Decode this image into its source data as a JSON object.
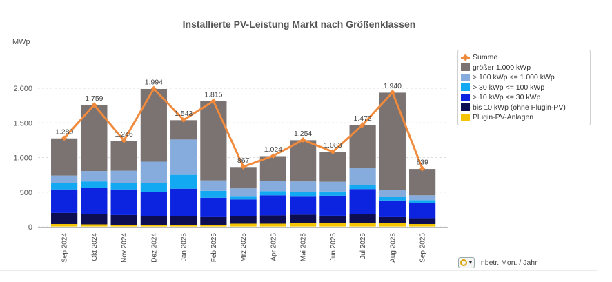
{
  "chart_data": {
    "type": "bar",
    "title": "Installierte PV-Leistung Markt nach Größenklassen",
    "ylabel": "MWp",
    "ylim": [
      0,
      2000
    ],
    "yticks": [
      0,
      500,
      1000,
      1500,
      2000
    ],
    "ytick_labels": [
      "0",
      "500",
      "1.000",
      "1.500",
      "2.000"
    ],
    "categories": [
      "Sep 2024",
      "Okt 2024",
      "Nov 2024",
      "Dez 2024",
      "Jan 2025",
      "Feb 2025",
      "Mrz 2025",
      "Apr 2025",
      "Mai 2025",
      "Jun 2025",
      "Jul 2025",
      "Aug 2025",
      "Sep 2025"
    ],
    "stacked": true,
    "series": [
      {
        "name": "Plugin-PV-Anlagen",
        "color": "#f5c400",
        "values": [
          40,
          35,
          30,
          30,
          30,
          30,
          45,
          45,
          55,
          50,
          55,
          50,
          40
        ]
      },
      {
        "name": "bis 10 kWp (ohne Plugin-PV)",
        "color": "#0d0d52",
        "values": [
          160,
          150,
          140,
          120,
          120,
          110,
          110,
          120,
          120,
          110,
          130,
          90,
          85
        ]
      },
      {
        "name": "> 10 kWp <= 30 kWp",
        "color": "#0c24e0",
        "values": [
          340,
          380,
          370,
          350,
          400,
          280,
          240,
          290,
          270,
          290,
          360,
          240,
          220
        ]
      },
      {
        "name": "> 30 kWp <= 100 kWp",
        "color": "#12a8f2",
        "values": [
          90,
          90,
          90,
          130,
          200,
          100,
          50,
          60,
          60,
          60,
          60,
          50,
          40
        ]
      },
      {
        "name": "> 100 kWp <= 1.000 kWp",
        "color": "#86acde",
        "values": [
          110,
          150,
          180,
          310,
          510,
          150,
          110,
          150,
          150,
          140,
          240,
          100,
          70
        ]
      },
      {
        "name": "größer 1.000 kWp",
        "color": "#7b7272",
        "values": [
          540,
          954,
          436,
          1054,
          283,
          1145,
          312,
          359,
          599,
          433,
          627,
          1410,
          384
        ]
      }
    ],
    "line": {
      "name": "Summe",
      "color": "#f08a3c",
      "values": [
        1280,
        1759,
        1246,
        1994,
        1543,
        1815,
        867,
        1024,
        1254,
        1083,
        1472,
        1940,
        839
      ]
    },
    "data_labels": [
      "1.280",
      "1.759",
      "1.246",
      "1.994",
      "1.543",
      "1.815",
      "867",
      "1.024",
      "1.254",
      "1.083",
      "1.472",
      "1.940",
      "839"
    ],
    "legend_order": [
      "Summe",
      "größer 1.000 kWp",
      "> 100 kWp <= 1.000 kWp",
      "> 30 kWp <= 100 kWp",
      "> 10 kWp <= 30 kWp",
      "bis 10 kWp (ohne Plugin-PV)",
      "Plugin-PV-Anlagen"
    ],
    "legend_position": "right",
    "grid": true
  },
  "controls": {
    "period_label": "Inbetr. Mon. / Jahr"
  }
}
